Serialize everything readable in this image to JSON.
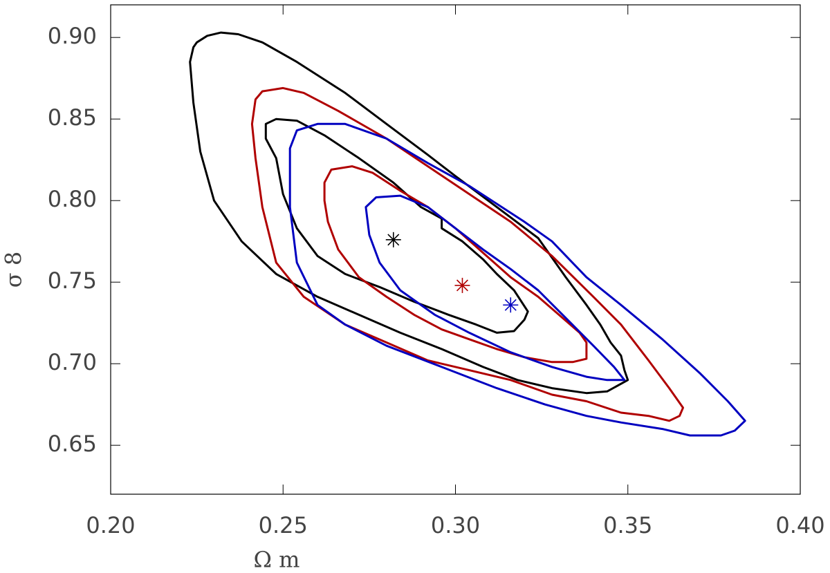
{
  "chart_data": {
    "type": "contour",
    "xlabel": "Ω m",
    "ylabel": "σ 8",
    "xlim": [
      0.2,
      0.4
    ],
    "ylim": [
      0.62,
      0.92
    ],
    "xticks": [
      {
        "value": 0.2,
        "label": "0.20"
      },
      0.25,
      {
        "value": 0.3,
        "label": "0.30"
      },
      0.35,
      {
        "value": 0.4,
        "label": "0.40"
      }
    ],
    "yticks": [
      0.65,
      {
        "value": 0.7,
        "label": "0.70"
      },
      0.75,
      {
        "value": 0.8,
        "label": "0.80"
      },
      0.85,
      {
        "value": 0.9,
        "label": "0.90"
      }
    ],
    "contours": [
      {
        "color": "#000000",
        "x": [
          0.225,
          0.228,
          0.232,
          0.237,
          0.244,
          0.254,
          0.268,
          0.28,
          0.292,
          0.3,
          0.312,
          0.324,
          0.332,
          0.338,
          0.342,
          0.345,
          0.348,
          0.349,
          0.35,
          0.344,
          0.338,
          0.328,
          0.318,
          0.308,
          0.296,
          0.284,
          0.272,
          0.26,
          0.248,
          0.238,
          0.23,
          0.226,
          0.224,
          0.223,
          0.224
        ],
        "y": [
          0.897,
          0.901,
          0.903,
          0.902,
          0.897,
          0.885,
          0.866,
          0.847,
          0.828,
          0.815,
          0.796,
          0.777,
          0.753,
          0.736,
          0.724,
          0.713,
          0.705,
          0.696,
          0.69,
          0.683,
          0.682,
          0.685,
          0.69,
          0.698,
          0.709,
          0.719,
          0.73,
          0.741,
          0.755,
          0.775,
          0.8,
          0.83,
          0.86,
          0.885,
          0.894
        ]
      },
      {
        "color": "#000000",
        "x": [
          0.245,
          0.248,
          0.254,
          0.262,
          0.272,
          0.282,
          0.29,
          0.296,
          0.296,
          0.302,
          0.308,
          0.312,
          0.317,
          0.321,
          0.32,
          0.317,
          0.312,
          0.306,
          0.298,
          0.288,
          0.278,
          0.268,
          0.26,
          0.254,
          0.25,
          0.248,
          0.245
        ],
        "y": [
          0.847,
          0.85,
          0.849,
          0.84,
          0.826,
          0.811,
          0.796,
          0.789,
          0.783,
          0.775,
          0.764,
          0.755,
          0.745,
          0.732,
          0.727,
          0.72,
          0.719,
          0.724,
          0.73,
          0.738,
          0.747,
          0.755,
          0.766,
          0.783,
          0.804,
          0.826,
          0.838
        ]
      },
      {
        "color": "#b00000",
        "x": [
          0.242,
          0.244,
          0.25,
          0.256,
          0.266,
          0.28,
          0.292,
          0.304,
          0.316,
          0.328,
          0.34,
          0.348,
          0.356,
          0.362,
          0.366,
          0.365,
          0.362,
          0.356,
          0.348,
          0.338,
          0.328,
          0.316,
          0.304,
          0.292,
          0.28,
          0.268,
          0.256,
          0.248,
          0.244,
          0.242,
          0.241
        ],
        "y": [
          0.862,
          0.867,
          0.869,
          0.866,
          0.855,
          0.838,
          0.821,
          0.804,
          0.787,
          0.766,
          0.741,
          0.724,
          0.702,
          0.685,
          0.673,
          0.668,
          0.665,
          0.668,
          0.67,
          0.677,
          0.681,
          0.69,
          0.696,
          0.702,
          0.713,
          0.724,
          0.741,
          0.762,
          0.796,
          0.826,
          0.847
        ]
      },
      {
        "color": "#b00000",
        "x": [
          0.262,
          0.264,
          0.27,
          0.276,
          0.284,
          0.292,
          0.3,
          0.308,
          0.316,
          0.324,
          0.33,
          0.336,
          0.338,
          0.338,
          0.334,
          0.328,
          0.32,
          0.312,
          0.304,
          0.296,
          0.288,
          0.28,
          0.272,
          0.266,
          0.263,
          0.262
        ],
        "y": [
          0.811,
          0.819,
          0.821,
          0.817,
          0.806,
          0.796,
          0.783,
          0.768,
          0.753,
          0.741,
          0.73,
          0.719,
          0.713,
          0.703,
          0.701,
          0.701,
          0.704,
          0.709,
          0.715,
          0.721,
          0.73,
          0.741,
          0.753,
          0.77,
          0.787,
          0.8
        ]
      },
      {
        "color": "#0000c0",
        "x": [
          0.252,
          0.254,
          0.26,
          0.268,
          0.28,
          0.292,
          0.304,
          0.32,
          0.328,
          0.338,
          0.348,
          0.36,
          0.371,
          0.379,
          0.384,
          0.381,
          0.377,
          0.368,
          0.36,
          0.348,
          0.338,
          0.326,
          0.312,
          0.296,
          0.28,
          0.268,
          0.26,
          0.254,
          0.252,
          0.252
        ],
        "y": [
          0.832,
          0.843,
          0.847,
          0.847,
          0.838,
          0.823,
          0.809,
          0.787,
          0.775,
          0.753,
          0.736,
          0.715,
          0.694,
          0.677,
          0.665,
          0.659,
          0.656,
          0.656,
          0.66,
          0.664,
          0.668,
          0.675,
          0.685,
          0.698,
          0.711,
          0.724,
          0.736,
          0.762,
          0.796,
          0.817
        ]
      },
      {
        "color": "#0000c0",
        "x": [
          0.274,
          0.277,
          0.284,
          0.292,
          0.3,
          0.308,
          0.316,
          0.324,
          0.332,
          0.34,
          0.346,
          0.349,
          0.344,
          0.338,
          0.328,
          0.316,
          0.304,
          0.294,
          0.284,
          0.278,
          0.275
        ],
        "y": [
          0.796,
          0.802,
          0.803,
          0.796,
          0.783,
          0.77,
          0.758,
          0.745,
          0.728,
          0.711,
          0.698,
          0.69,
          0.69,
          0.692,
          0.698,
          0.707,
          0.719,
          0.73,
          0.745,
          0.762,
          0.779
        ]
      }
    ],
    "markers": {
      "x": [
        0.282,
        0.302,
        0.316
      ],
      "y": [
        0.776,
        0.748,
        0.736
      ],
      "colors": [
        "#000000",
        "#b00000",
        "#0000c0"
      ]
    }
  }
}
